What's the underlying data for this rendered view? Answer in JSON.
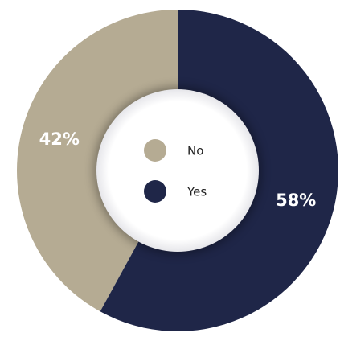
{
  "chart_data": {
    "type": "donut",
    "categories": [
      "No",
      "Yes"
    ],
    "values": [
      42,
      58
    ],
    "value_labels": [
      "42%",
      "58%"
    ],
    "colors": [
      "#b5ab93",
      "#1f2648"
    ]
  }
}
